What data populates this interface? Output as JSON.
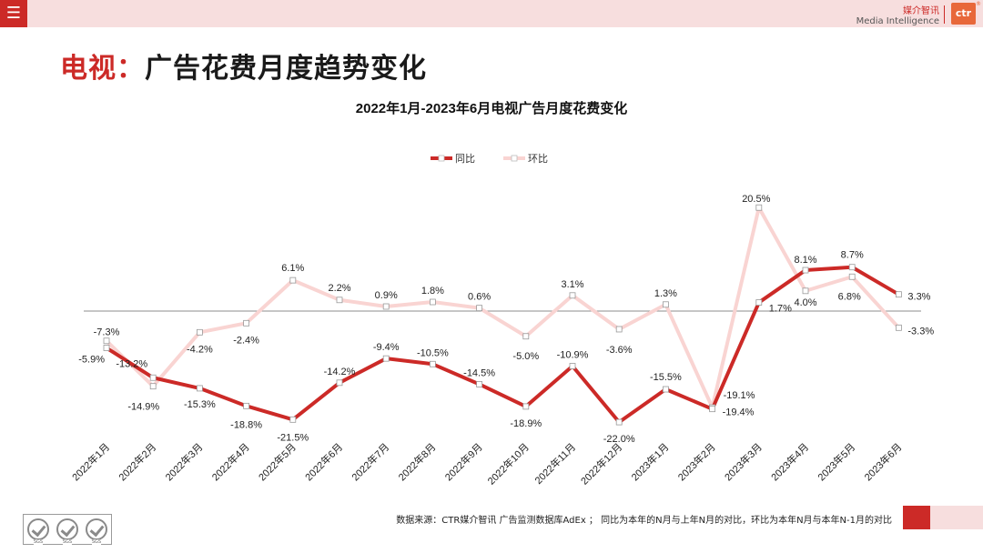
{
  "header": {
    "menu_icon": "menu-icon",
    "brand_cn": "媒介智讯",
    "brand_en": "Media Intelligence",
    "logo_text": "ctr",
    "logo_reg": "®"
  },
  "page": {
    "title_highlight": "电视：",
    "title_rest": "广告花费月度趋势变化"
  },
  "footer": {
    "source": "数据来源：CTR媒介智讯 广告监测数据库AdEx ；  同比为本年的N月与上年N月的对比，环比为本年N月与本年N-1月的对比",
    "cert_label": "SGS",
    "cert_icon": "certification-badge-icon"
  },
  "colors": {
    "accent": "#cc2a27",
    "yoy_line": "#cc2a27",
    "mom_line": "#f9d4d2",
    "header_bg": "#f7dede"
  },
  "chart_data": {
    "type": "line",
    "title": "2022年1月-2023年6月电视广告月度花费变化",
    "categories": [
      "2022年1月",
      "2022年2月",
      "2022年3月",
      "2022年4月",
      "2022年5月",
      "2022年6月",
      "2022年7月",
      "2022年8月",
      "2022年9月",
      "2022年10月",
      "2022年11月",
      "2022年12月",
      "2023年1月",
      "2023年2月",
      "2023年3月",
      "2023年4月",
      "2023年5月",
      "2023年6月"
    ],
    "series": [
      {
        "name": "同比",
        "values": [
          -7.3,
          -13.2,
          -15.3,
          -18.8,
          -21.5,
          -14.2,
          -9.4,
          -10.5,
          -14.5,
          -18.9,
          -10.9,
          -22.0,
          -15.5,
          -19.4,
          1.7,
          8.1,
          8.7,
          3.3
        ]
      },
      {
        "name": "环比",
        "values": [
          -5.9,
          -14.9,
          -4.2,
          -2.4,
          6.1,
          2.2,
          0.9,
          1.8,
          0.6,
          -5.0,
          3.1,
          -3.6,
          1.3,
          -19.1,
          20.5,
          4.0,
          6.8,
          -3.3
        ]
      }
    ],
    "unit": "%",
    "ylim": [
      -25,
      25
    ],
    "legend": "top-center",
    "zero_line": true
  }
}
